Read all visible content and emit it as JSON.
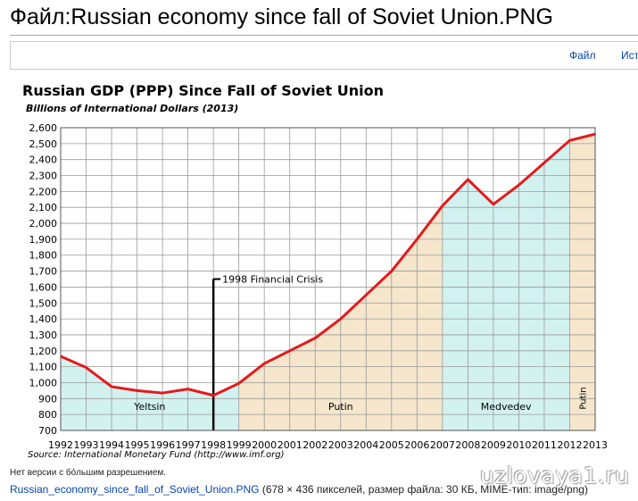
{
  "page": {
    "title": "Файл:Russian economy since fall of Soviet Union.PNG",
    "tabs": [
      "Файл",
      "Ист"
    ],
    "no_hires_text": "Нет версии с бо́льшим разрешением.",
    "file_link": "Russian_economy_since_fall_of_Soviet_Union.PNG",
    "file_info": " (678 × 436 пикселей, размер файла: 30 КБ, MIME-тип: image/png)",
    "watermark": "uzlovaya1.ru"
  },
  "chart_data": {
    "type": "line",
    "title": "Russian  GDP (PPP) Since Fall of Soviet Union",
    "subtitle": "Billions of International Dollars (2013)",
    "source": "Source: International Monetary Fund (http://www.imf.org)",
    "x": [
      1992,
      1993,
      1994,
      1995,
      1996,
      1997,
      1998,
      1999,
      2000,
      2001,
      2002,
      2003,
      2004,
      2005,
      2006,
      2007,
      2008,
      2009,
      2010,
      2011,
      2012,
      2013
    ],
    "values": [
      1165,
      1095,
      975,
      950,
      935,
      960,
      920,
      995,
      1120,
      1200,
      1280,
      1400,
      1550,
      1700,
      1900,
      2110,
      2275,
      2120,
      2240,
      2380,
      2520,
      2560
    ],
    "xlim": [
      1992,
      2013
    ],
    "ylim": [
      700,
      2600
    ],
    "yticks": [
      700,
      800,
      900,
      1000,
      1100,
      1200,
      1300,
      1400,
      1500,
      1600,
      1700,
      1800,
      1900,
      2000,
      2100,
      2200,
      2300,
      2400,
      2500,
      2600
    ],
    "grid": true,
    "line_color": "#e31a1c",
    "periods": [
      {
        "name": "Yeltsin",
        "start": 1992,
        "end": 1999,
        "color": "#d2f2f0"
      },
      {
        "name": "Putin",
        "start": 1999,
        "end": 2007,
        "color": "#f5e6cc"
      },
      {
        "name": "Medvedev",
        "start": 2007,
        "end": 2012,
        "color": "#d2f2f0"
      },
      {
        "name": "Putin",
        "start": 2012,
        "end": 2013,
        "color": "#f5e6cc",
        "vertical": true
      }
    ],
    "annotation": {
      "text": "1998 Financial Crisis",
      "x": 1998,
      "y_top": 1650
    }
  }
}
